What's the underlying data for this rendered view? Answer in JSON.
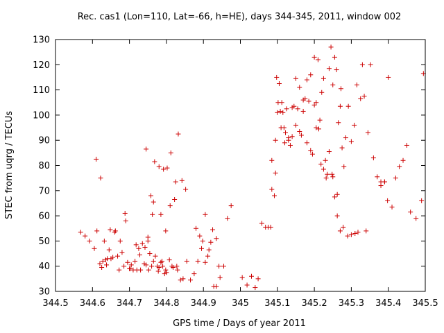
{
  "chart_data": {
    "type": "scatter",
    "title": "Rec. cas1 (Lon=110, Lat=-66, h=HE), days 344-345, 2011, window 002",
    "xlabel": "GPS time / Days of year 2011",
    "ylabel": "STEC from uqrg / TECUs",
    "xlim": [
      344.5,
      345.5
    ],
    "ylim": [
      30,
      130
    ],
    "xticks": [
      344.5,
      344.6,
      344.7,
      344.8,
      344.9,
      345,
      345.1,
      345.2,
      345.3,
      345.4,
      345.5
    ],
    "xtick_labels": [
      "344.5",
      "344.6",
      "344.7",
      "344.8",
      "344.9",
      "345",
      "345.1",
      "345.2",
      "345.3",
      "345.4",
      "345.5"
    ],
    "yticks": [
      30,
      40,
      50,
      60,
      70,
      80,
      90,
      100,
      110,
      120,
      130
    ],
    "ytick_labels": [
      "30",
      "40",
      "50",
      "60",
      "70",
      "80",
      "90",
      "100",
      "110",
      "120",
      "130"
    ],
    "grid": false,
    "legend": "none",
    "marker": "plus",
    "color": "#cc0000",
    "series": [
      {
        "x": [
          344.568,
          344.58,
          344.592,
          344.605,
          344.612,
          344.62,
          344.625,
          344.628,
          344.632,
          344.636,
          344.64,
          344.645,
          344.65,
          344.655,
          344.662,
          344.668,
          344.675,
          344.68,
          344.685,
          344.69,
          344.695,
          344.7,
          344.705,
          344.71,
          344.715,
          344.72,
          344.725,
          344.73,
          344.735,
          344.74,
          344.745,
          344.75,
          344.755,
          344.76,
          344.765,
          344.77,
          344.775,
          344.78,
          344.785,
          344.79,
          344.795,
          344.61,
          344.622,
          344.638,
          344.648,
          344.66,
          344.672,
          344.688,
          344.702,
          344.718,
          344.728,
          344.742,
          344.752,
          344.762,
          344.778,
          344.788,
          344.798,
          344.808,
          344.818,
          344.828,
          344.838,
          344.745,
          344.758,
          344.768,
          344.78,
          344.792,
          344.802,
          344.812,
          344.822,
          344.832,
          344.842,
          344.852,
          344.75,
          344.765,
          344.785,
          344.798,
          344.81,
          344.825,
          344.8,
          344.815,
          344.83,
          344.845,
          344.855,
          344.865,
          344.875,
          344.885,
          344.895,
          344.905,
          344.915,
          344.925,
          344.935,
          344.945,
          344.955,
          344.88,
          344.89,
          344.898,
          344.905,
          344.912,
          344.92,
          344.928,
          344.935,
          344.942,
          344.965,
          344.975,
          345.005,
          345.018,
          345.03,
          345.04,
          345.048,
          345.058,
          345.068,
          345.075,
          345.082,
          345.085,
          345.092,
          345.095,
          345.098,
          345.102,
          345.105,
          345.108,
          345.112,
          345.115,
          345.118,
          345.122,
          345.125,
          345.13,
          345.135,
          345.14,
          345.145,
          345.15,
          345.155,
          345.16,
          345.165,
          345.17,
          345.175,
          345.18,
          345.185,
          345.19,
          345.195,
          345.085,
          345.095,
          345.1,
          345.11,
          345.12,
          345.13,
          345.14,
          345.15,
          345.16,
          345.17,
          345.18,
          345.19,
          345.2,
          345.2,
          345.205,
          345.21,
          345.215,
          345.22,
          345.225,
          345.23,
          345.235,
          345.24,
          345.245,
          345.25,
          345.255,
          345.26,
          345.265,
          345.27,
          345.275,
          345.28,
          345.205,
          345.212,
          345.218,
          345.225,
          345.232,
          345.24,
          345.248,
          345.255,
          345.262,
          345.27,
          345.278,
          345.25,
          345.262,
          345.272,
          345.285,
          345.292,
          345.3,
          345.308,
          345.315,
          345.325,
          345.335,
          345.345,
          345.29,
          345.3,
          345.31,
          345.318,
          345.33,
          345.34,
          345.352,
          345.36,
          345.37,
          345.38,
          345.39,
          345.398,
          345.41,
          345.42,
          345.43,
          345.44,
          345.45,
          345.38,
          345.39,
          345.4,
          345.46,
          345.475,
          345.49,
          345.495
        ],
        "y": [
          53.5,
          52,
          50,
          47,
          54,
          41,
          39.5,
          42,
          50,
          42.5,
          43,
          46.5,
          43,
          43.5,
          54,
          44,
          50,
          45.5,
          40,
          58,
          41.5,
          39,
          40.5,
          38.5,
          42,
          38.5,
          47,
          38.5,
          49,
          41,
          40.5,
          51.5,
          45,
          40,
          42,
          44,
          40,
          39.5,
          41.5,
          40,
          37,
          82.5,
          75,
          40.5,
          54.5,
          53.5,
          38.5,
          61,
          39,
          48.5,
          44.5,
          47.5,
          38.5,
          60.5,
          38,
          42,
          38.5,
          42.5,
          39.5,
          40,
          34.5,
          86.5,
          68,
          81.5,
          79.5,
          78.5,
          79,
          85,
          66.5,
          92.5,
          74,
          70.5,
          50,
          65.5,
          60.5,
          54,
          64,
          73.5,
          37.5,
          40,
          38.5,
          35,
          42,
          34.5,
          37,
          42,
          47,
          41.5,
          46.5,
          54.5,
          51,
          35.5,
          40,
          55,
          52,
          50,
          60.5,
          44,
          49.5,
          32,
          32,
          40,
          59,
          64,
          35.5,
          32.5,
          36,
          31.5,
          35,
          57,
          55.5,
          55.5,
          55.5,
          70.5,
          68,
          90,
          115,
          105,
          112.5,
          101.5,
          105,
          101,
          95,
          93,
          102.5,
          90,
          88,
          91.5,
          103.5,
          96,
          102.5,
          93.5,
          92,
          101.5,
          106.5,
          89,
          105.5,
          86,
          84.5,
          82,
          77,
          101,
          95,
          89,
          91,
          103,
          114.5,
          111,
          106,
          114,
          116,
          104,
          123,
          105,
          122,
          98,
          109,
          114.5,
          82,
          76.5,
          118.5,
          127,
          112,
          123,
          118,
          97,
          103.5,
          87,
          79.5,
          95,
          94.5,
          80.5,
          78.5,
          75,
          85.5,
          76.5,
          67.5,
          60,
          54,
          55.5,
          75.5,
          68.5,
          110.5,
          91,
          103.5,
          89.5,
          96,
          112,
          106.5,
          107.5,
          93,
          52,
          52.5,
          53,
          53.5,
          120,
          54,
          120,
          83,
          75.5,
          73.5,
          73.5,
          66,
          63.5,
          75,
          79.5,
          82,
          88,
          72,
          73.5,
          115,
          61.5,
          59,
          66,
          116.5
        ]
      }
    ]
  }
}
